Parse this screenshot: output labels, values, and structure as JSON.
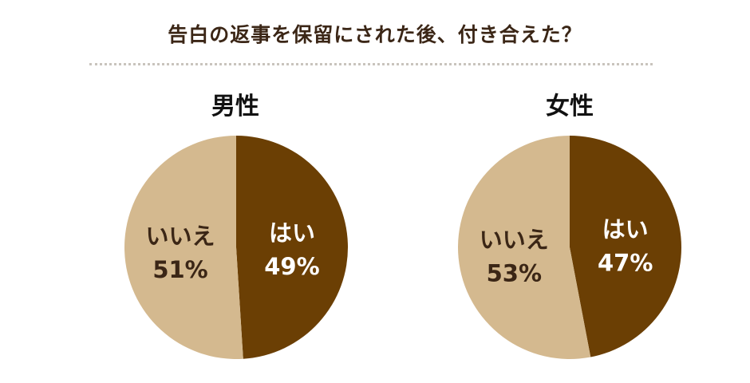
{
  "title": "告白の返事を保留にされた後、付き合えた？",
  "colors": {
    "yes": "#6b3f04",
    "no": "#d4b98f",
    "yes_text": "#ffffff",
    "no_text": "#3b2616"
  },
  "chart_data": [
    {
      "type": "pie",
      "title": "男性",
      "slices": [
        {
          "label": "はい",
          "value": 49,
          "display": "49%"
        },
        {
          "label": "いいえ",
          "value": 51,
          "display": "51%"
        }
      ]
    },
    {
      "type": "pie",
      "title": "女性",
      "slices": [
        {
          "label": "はい",
          "value": 47,
          "display": "47%"
        },
        {
          "label": "いいえ",
          "value": 53,
          "display": "53%"
        }
      ]
    }
  ]
}
